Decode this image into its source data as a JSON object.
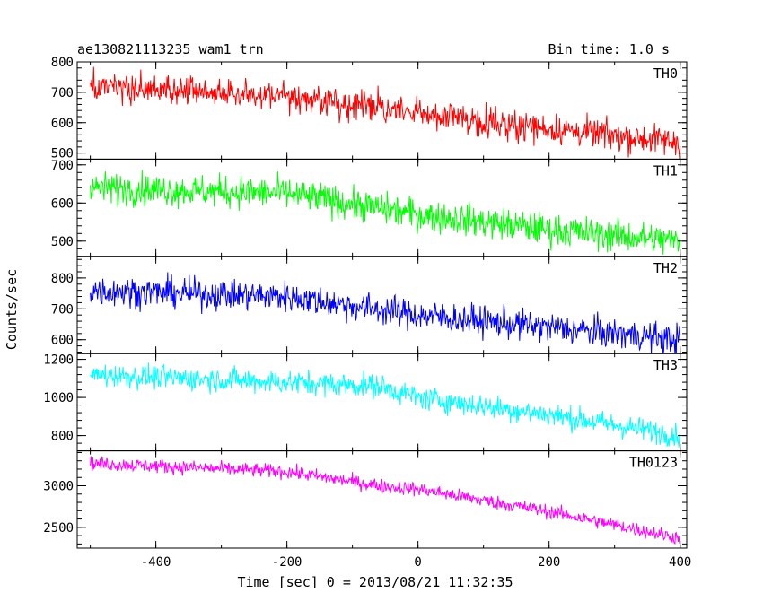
{
  "chart_data": {
    "type": "line",
    "title": "ae130821113235_wam1_trn",
    "subtitle": "Bin time: 1.0 s",
    "xlabel": "Time [sec] 0 = 2013/08/21 11:32:35",
    "ylabel": "Counts/sec",
    "xlim": [
      -520,
      410
    ],
    "x_ticks": [
      -400,
      -200,
      0,
      200,
      400
    ],
    "x_range": [
      -500,
      400
    ],
    "bin_time": 1.0,
    "grid": false,
    "legend": "none",
    "panels": [
      {
        "name": "TH0",
        "color": "#ff0000",
        "ylim": [
          480,
          800
        ],
        "y_ticks": [
          500,
          600,
          700,
          800
        ],
        "trend": [
          [
            -500,
            715
          ],
          [
            -200,
            690
          ],
          [
            0,
            630
          ],
          [
            200,
            580
          ],
          [
            400,
            535
          ]
        ],
        "noise": 35
      },
      {
        "name": "TH1",
        "color": "#00ff00",
        "ylim": [
          460,
          715
        ],
        "y_ticks": [
          500,
          600,
          700
        ],
        "trend": [
          [
            -500,
            640
          ],
          [
            -200,
            625
          ],
          [
            0,
            570
          ],
          [
            200,
            530
          ],
          [
            400,
            500
          ]
        ],
        "noise": 30
      },
      {
        "name": "TH2",
        "color": "#0000ff",
        "ylim": [
          555,
          870
        ],
        "y_ticks": [
          600,
          700,
          800
        ],
        "trend": [
          [
            -500,
            760
          ],
          [
            -200,
            740
          ],
          [
            0,
            680
          ],
          [
            200,
            640
          ],
          [
            400,
            600
          ]
        ],
        "noise": 35
      },
      {
        "name": "TH3",
        "color": "#00ffff",
        "ylim": [
          720,
          1230
        ],
        "y_ticks": [
          800,
          1000,
          1200
        ],
        "trend": [
          [
            -500,
            1120
          ],
          [
            -200,
            1080
          ],
          [
            -60,
            1060
          ],
          [
            0,
            1000
          ],
          [
            200,
            910
          ],
          [
            400,
            800
          ]
        ],
        "noise": 45
      },
      {
        "name": "TH0123",
        "color": "#ff00ff",
        "ylim": [
          2250,
          3420
        ],
        "y_ticks": [
          2500,
          3000
        ],
        "trend": [
          [
            -500,
            3270
          ],
          [
            -200,
            3170
          ],
          [
            -60,
            3000
          ],
          [
            0,
            2960
          ],
          [
            200,
            2690
          ],
          [
            400,
            2370
          ]
        ],
        "noise": 60
      }
    ]
  }
}
